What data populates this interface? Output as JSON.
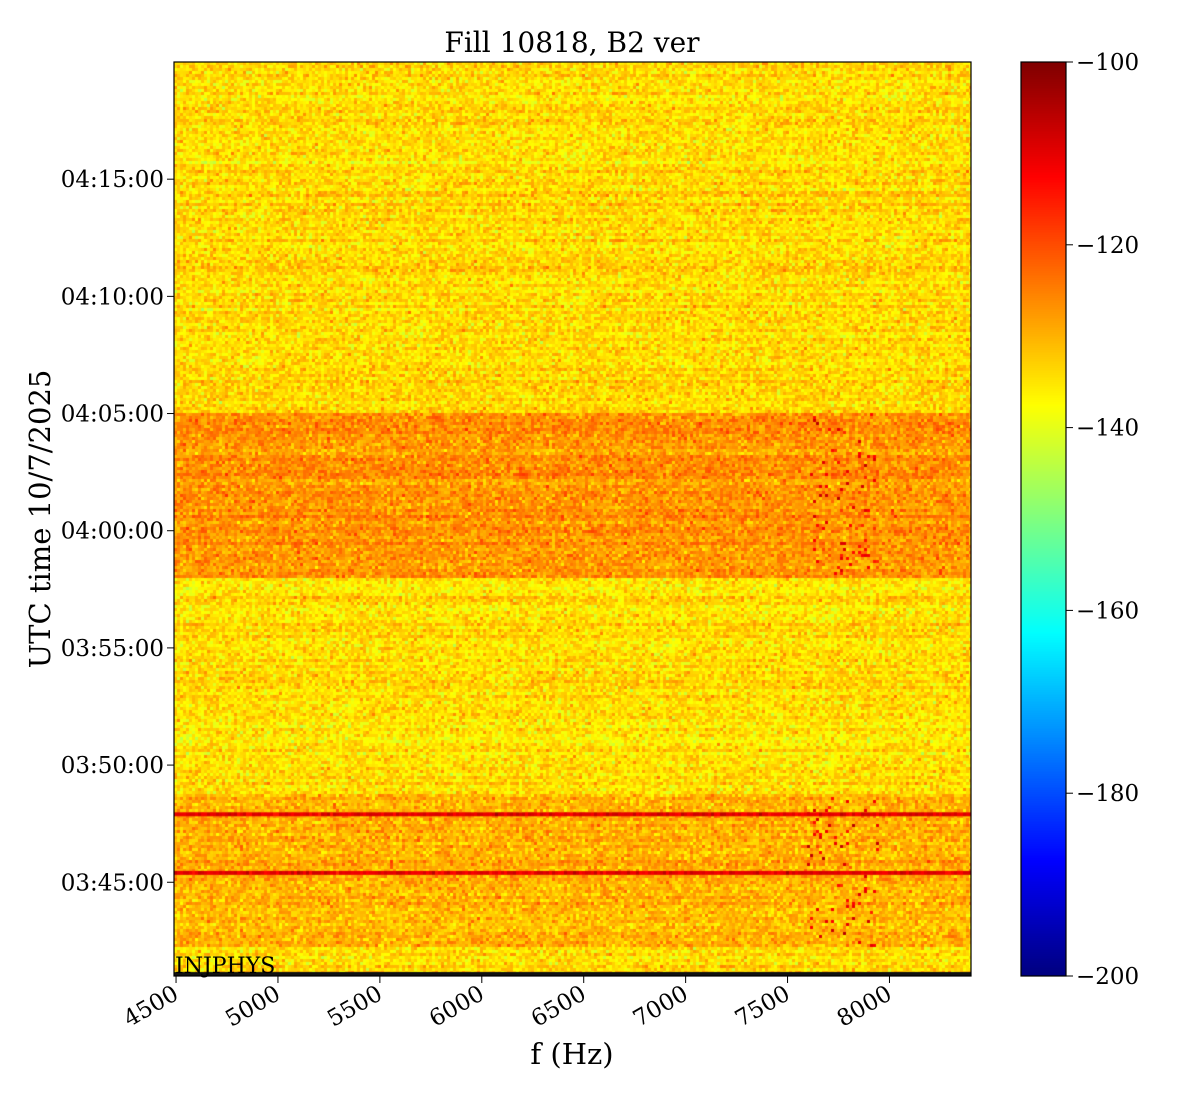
{
  "chart_data": {
    "type": "heatmap",
    "title": "Fill 10818, B2 ver",
    "xlabel": "f (Hz)",
    "ylabel": "UTC time 10/7/2025",
    "xlim": [
      4490,
      8400
    ],
    "x_ticks": [
      "4500",
      "5000",
      "5500",
      "6000",
      "6500",
      "7000",
      "7500",
      "8000"
    ],
    "x_tick_values": [
      4500,
      5000,
      5500,
      6000,
      6500,
      7000,
      7500,
      8000
    ],
    "y_ticks": [
      "04:15:00",
      "04:10:00",
      "04:05:00",
      "04:00:00",
      "03:55:00",
      "03:50:00",
      "03:45:00"
    ],
    "y_tick_minutes": [
      255,
      250,
      245,
      240,
      235,
      230,
      225
    ],
    "ylim_minutes": [
      221.0,
      260.0
    ],
    "colormap": "jet",
    "colorbar": {
      "vmin": -200,
      "vmax": -100,
      "ticks": [
        "−100",
        "−120",
        "−140",
        "−160",
        "−180",
        "−200"
      ],
      "tick_values": [
        -100,
        -120,
        -140,
        -160,
        -180,
        -200
      ]
    },
    "background_level": -134,
    "regions": [
      {
        "t_from_minutes": 238.0,
        "t_to_minutes": 245.0,
        "level": -127
      },
      {
        "t_from_minutes": 222.3,
        "t_to_minutes": 228.8,
        "level": -130
      }
    ],
    "horizontal_lines": [
      {
        "t_minutes": 227.9,
        "level": -110
      },
      {
        "t_minutes": 225.4,
        "level": -110
      }
    ],
    "hot_spot_cluster": {
      "f_range": [
        7600,
        7950
      ],
      "level": -112
    },
    "annotation": "INJPHYS"
  }
}
